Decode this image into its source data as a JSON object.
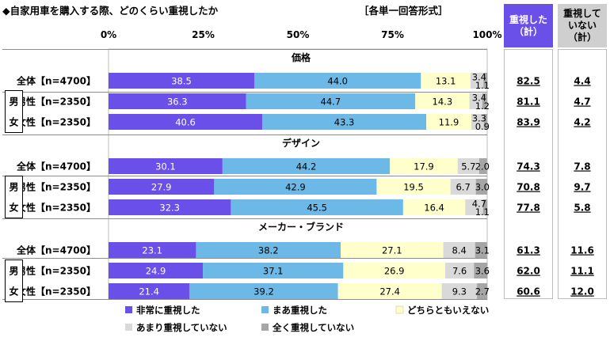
{
  "header": {
    "title": "◆自家用車を購入する際、どのくらい重視したか",
    "format": "［各単一回答形式］"
  },
  "summary_headers": {
    "important": "重視した\n（計）",
    "not_important": "重視して\nいない\n（計）"
  },
  "group_box_label": [
    "男",
    "女"
  ],
  "colors": {
    "very": "#6a50e8",
    "somewhat": "#6cb9e8",
    "neutral": "#ffffcc",
    "not_much": "#d9d9d9",
    "not_at_all": "#a6a6a6",
    "header_important_bg": "#6a50e8",
    "header_not_important_bg": "#cfcfcf"
  },
  "chart_data": {
    "type": "bar",
    "orientation": "horizontal",
    "stacked": true,
    "percent_axis": {
      "min": 0,
      "max": 100,
      "ticks": [
        "0%",
        "25%",
        "50%",
        "75%",
        "100%"
      ]
    },
    "legend": {
      "placement": "bottom",
      "entries": [
        "非常に重視した",
        "まあ重視した",
        "どちらともいえない",
        "あまり重視していない",
        "全く重視していない"
      ]
    },
    "sections": [
      {
        "title": "価格",
        "rows": [
          {
            "label": "全体【n=4700】",
            "values": [
              38.5,
              44.0,
              13.1,
              3.4,
              1.1
            ],
            "labels": [
              "38.5",
              "44.0",
              "13.1",
              "3.4",
              "1.1"
            ],
            "important_total": "82.5",
            "not_important_total": "4.4"
          },
          {
            "label": "男性【n=2350】",
            "values": [
              36.3,
              44.7,
              14.3,
              3.4,
              1.2
            ],
            "labels": [
              "36.3",
              "44.7",
              "14.3",
              "3.4",
              "1.2"
            ],
            "important_total": "81.1",
            "not_important_total": "4.7"
          },
          {
            "label": "女性【n=2350】",
            "values": [
              40.6,
              43.3,
              11.9,
              3.3,
              0.9
            ],
            "labels": [
              "40.6",
              "43.3",
              "11.9",
              "3.3",
              "0.9"
            ],
            "important_total": "83.9",
            "not_important_total": "4.2"
          }
        ]
      },
      {
        "title": "デザイン",
        "rows": [
          {
            "label": "全体【n=4700】",
            "values": [
              30.1,
              44.2,
              17.9,
              5.7,
              2.0
            ],
            "labels": [
              "30.1",
              "44.2",
              "17.9",
              "5.7",
              "2.0"
            ],
            "important_total": "74.3",
            "not_important_total": "7.8"
          },
          {
            "label": "男性【n=2350】",
            "values": [
              27.9,
              42.9,
              19.5,
              6.7,
              3.0
            ],
            "labels": [
              "27.9",
              "42.9",
              "19.5",
              "6.7",
              "3.0"
            ],
            "important_total": "70.8",
            "not_important_total": "9.7"
          },
          {
            "label": "女性【n=2350】",
            "values": [
              32.3,
              45.5,
              16.4,
              4.7,
              1.1
            ],
            "labels": [
              "32.3",
              "45.5",
              "16.4",
              "4.7",
              "1.1"
            ],
            "important_total": "77.8",
            "not_important_total": "5.8"
          }
        ]
      },
      {
        "title": "メーカー・ブランド",
        "rows": [
          {
            "label": "全体【n=4700】",
            "values": [
              23.1,
              38.2,
              27.1,
              8.4,
              3.1
            ],
            "labels": [
              "23.1",
              "38.2",
              "27.1",
              "8.4",
              "3.1"
            ],
            "important_total": "61.3",
            "not_important_total": "11.6"
          },
          {
            "label": "男性【n=2350】",
            "values": [
              24.9,
              37.1,
              26.9,
              7.6,
              3.6
            ],
            "labels": [
              "24.9",
              "37.1",
              "26.9",
              "7.6",
              "3.6"
            ],
            "important_total": "62.0",
            "not_important_total": "11.1"
          },
          {
            "label": "女性【n=2350】",
            "values": [
              21.4,
              39.2,
              27.4,
              9.3,
              2.7
            ],
            "labels": [
              "21.4",
              "39.2",
              "27.4",
              "9.3",
              "2.7"
            ],
            "important_total": "60.6",
            "not_important_total": "12.0"
          }
        ]
      }
    ]
  }
}
